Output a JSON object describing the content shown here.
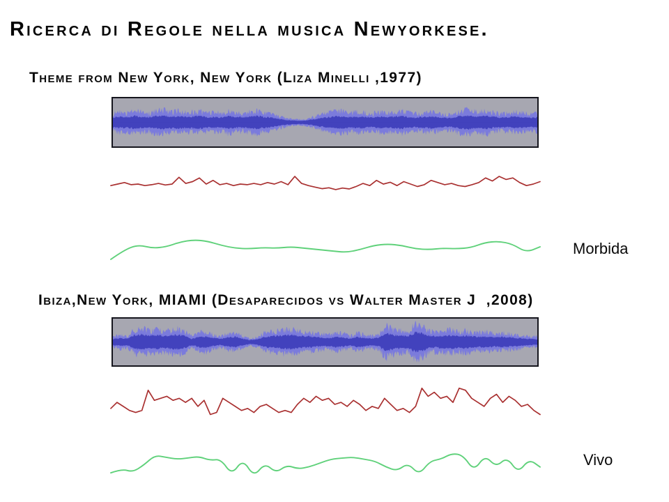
{
  "slide": {
    "title": "Ricerca di Regole nella musica Newyorkese.",
    "background_color": "#ffffff",
    "text_color": "#0a0a0a"
  },
  "sections": [
    {
      "caption": "Theme from New York, New York (Liza Minelli ,1977)",
      "style_label": "Morbida"
    },
    {
      "caption": "Ibiza,New York, MIAMI (Desaparecidos vs Walter Master J  ,2008)",
      "style_label": "Vivo"
    }
  ],
  "colors": {
    "waveform_background": "#a7a7b1",
    "waveform_border": "#15151d",
    "waveform_peak_blue": "#7b7bdc",
    "waveform_rms_blue": "#4242bd",
    "red_curve": "#a93030",
    "green_curve": "#5fd17a"
  },
  "chart_data": [
    {
      "id": "waveform-1",
      "type": "area",
      "description": "stereo audio waveform, Theme from New York New York",
      "ylim": [
        -1,
        1
      ],
      "envelope": [
        0.45,
        0.55,
        0.5,
        0.62,
        0.55,
        0.5,
        0.6,
        0.66,
        0.55,
        0.6,
        0.52,
        0.56,
        0.62,
        0.5,
        0.55,
        0.5,
        0.6,
        0.55,
        0.5,
        0.56,
        0.62,
        0.52,
        0.46,
        0.34,
        0.24,
        0.18,
        0.16,
        0.2,
        0.3,
        0.42,
        0.52,
        0.56,
        0.6,
        0.5,
        0.56,
        0.52,
        0.46,
        0.56,
        0.5,
        0.55,
        0.62,
        0.52,
        0.46,
        0.5,
        0.56,
        0.5,
        0.46,
        0.42,
        0.56,
        0.66,
        0.6,
        0.55,
        0.62,
        0.52,
        0.46,
        0.5,
        0.56,
        0.5,
        0.44,
        0.5
      ]
    },
    {
      "id": "red-curve-1",
      "type": "line",
      "color": "#a93030",
      "values": [
        0.55,
        0.5,
        0.45,
        0.52,
        0.5,
        0.55,
        0.52,
        0.48,
        0.53,
        0.5,
        0.28,
        0.48,
        0.42,
        0.3,
        0.5,
        0.38,
        0.52,
        0.48,
        0.55,
        0.5,
        0.52,
        0.48,
        0.52,
        0.45,
        0.5,
        0.42,
        0.52,
        0.25,
        0.48,
        0.55,
        0.6,
        0.65,
        0.62,
        0.68,
        0.63,
        0.66,
        0.58,
        0.48,
        0.55,
        0.38,
        0.5,
        0.44,
        0.55,
        0.42,
        0.5,
        0.58,
        0.52,
        0.38,
        0.45,
        0.52,
        0.48,
        0.55,
        0.58,
        0.52,
        0.45,
        0.3,
        0.4,
        0.25,
        0.35,
        0.3,
        0.45,
        0.55,
        0.5,
        0.42
      ]
    },
    {
      "id": "green-curve-1",
      "type": "line",
      "color": "#5fd17a",
      "values": [
        0.9,
        0.55,
        0.38,
        0.5,
        0.45,
        0.28,
        0.2,
        0.25,
        0.4,
        0.5,
        0.52,
        0.48,
        0.5,
        0.45,
        0.5,
        0.55,
        0.6,
        0.65,
        0.55,
        0.4,
        0.35,
        0.4,
        0.52,
        0.55,
        0.5,
        0.52,
        0.48,
        0.3,
        0.25,
        0.35,
        0.65,
        0.45
      ]
    },
    {
      "id": "waveform-2",
      "type": "area",
      "description": "stereo audio waveform, Ibiza New York MIAMI",
      "ylim": [
        -1,
        1
      ],
      "envelope": [
        0.3,
        0.38,
        0.32,
        0.68,
        0.75,
        0.62,
        0.7,
        0.6,
        0.66,
        0.72,
        0.58,
        0.3,
        0.52,
        0.56,
        0.4,
        0.3,
        0.46,
        0.52,
        0.34,
        0.2,
        0.26,
        0.5,
        0.56,
        0.62,
        0.66,
        0.7,
        0.6,
        0.56,
        0.5,
        0.44,
        0.4,
        0.52,
        0.46,
        0.34,
        0.5,
        0.4,
        0.34,
        0.46,
        0.9,
        0.7,
        0.64,
        0.58,
        0.95,
        0.85,
        0.6,
        0.56,
        0.6,
        0.66,
        0.56,
        0.62,
        0.55,
        0.5,
        0.56,
        0.46,
        0.5,
        0.46,
        0.4,
        0.36,
        0.3,
        0.28
      ]
    },
    {
      "id": "red-curve-2",
      "type": "line",
      "color": "#a93030",
      "values": [
        0.6,
        0.45,
        0.55,
        0.65,
        0.7,
        0.65,
        0.15,
        0.4,
        0.35,
        0.3,
        0.4,
        0.35,
        0.45,
        0.35,
        0.55,
        0.4,
        0.75,
        0.7,
        0.35,
        0.45,
        0.55,
        0.65,
        0.6,
        0.7,
        0.55,
        0.5,
        0.6,
        0.7,
        0.65,
        0.7,
        0.5,
        0.35,
        0.45,
        0.3,
        0.4,
        0.35,
        0.5,
        0.45,
        0.55,
        0.4,
        0.5,
        0.65,
        0.55,
        0.6,
        0.35,
        0.5,
        0.65,
        0.6,
        0.7,
        0.55,
        0.1,
        0.3,
        0.2,
        0.35,
        0.3,
        0.45,
        0.1,
        0.15,
        0.35,
        0.45,
        0.55,
        0.35,
        0.25,
        0.45,
        0.3,
        0.4,
        0.55,
        0.5,
        0.65,
        0.75
      ]
    },
    {
      "id": "green-curve-2",
      "type": "line",
      "color": "#5fd17a",
      "values": [
        0.7,
        0.6,
        0.68,
        0.5,
        0.25,
        0.3,
        0.35,
        0.32,
        0.28,
        0.38,
        0.35,
        0.75,
        0.35,
        0.8,
        0.45,
        0.7,
        0.5,
        0.6,
        0.55,
        0.45,
        0.35,
        0.32,
        0.3,
        0.35,
        0.4,
        0.55,
        0.65,
        0.45,
        0.75,
        0.4,
        0.35,
        0.2,
        0.25,
        0.65,
        0.25,
        0.55,
        0.3,
        0.7,
        0.35,
        0.55
      ]
    }
  ]
}
